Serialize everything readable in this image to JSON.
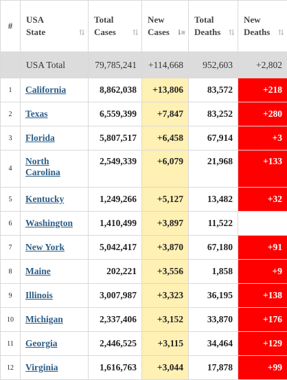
{
  "headers": {
    "index": "#",
    "state_line1": "USA",
    "state_line2": "State",
    "cases_line1": "Total",
    "cases_line2": "Cases",
    "newcases_line1": "New",
    "newcases_line2": "Cases",
    "deaths_line1": "Total",
    "deaths_line2": "Deaths",
    "newdeaths_line1": "New",
    "newdeaths_line2": "Deaths",
    "sort_icon": "⇅",
    "sort_active_icon": "⇂≡"
  },
  "total": {
    "label": "USA Total",
    "total_cases": "79,785,241",
    "new_cases": "+114,668",
    "total_deaths": "952,603",
    "new_deaths": "+2,802"
  },
  "rows": [
    {
      "idx": "1",
      "state_line1": "California",
      "state_line2": "",
      "cases": "8,862,038",
      "new_cases": "+13,806",
      "deaths": "83,572",
      "new_deaths": "+218"
    },
    {
      "idx": "2",
      "state_line1": "Texas",
      "state_line2": "",
      "cases": "6,559,399",
      "new_cases": "+7,847",
      "deaths": "83,252",
      "new_deaths": "+280"
    },
    {
      "idx": "3",
      "state_line1": "Florida",
      "state_line2": "",
      "cases": "5,807,517",
      "new_cases": "+6,458",
      "deaths": "67,914",
      "new_deaths": "+3"
    },
    {
      "idx": "4",
      "state_line1": "North",
      "state_line2": "Carolina",
      "cases": "2,549,339",
      "new_cases": "+6,079",
      "deaths": "21,968",
      "new_deaths": "+133"
    },
    {
      "idx": "5",
      "state_line1": "Kentucky",
      "state_line2": "",
      "cases": "1,249,266",
      "new_cases": "+5,127",
      "deaths": "13,482",
      "new_deaths": "+32"
    },
    {
      "idx": "6",
      "state_line1": "Washington",
      "state_line2": "",
      "cases": "1,410,499",
      "new_cases": "+3,897",
      "deaths": "11,522",
      "new_deaths": ""
    },
    {
      "idx": "7",
      "state_line1": "New York",
      "state_line2": "",
      "cases": "5,042,417",
      "new_cases": "+3,870",
      "deaths": "67,180",
      "new_deaths": "+91"
    },
    {
      "idx": "8",
      "state_line1": "Maine",
      "state_line2": "",
      "cases": "202,221",
      "new_cases": "+3,556",
      "deaths": "1,858",
      "new_deaths": "+9"
    },
    {
      "idx": "9",
      "state_line1": "Illinois",
      "state_line2": "",
      "cases": "3,007,987",
      "new_cases": "+3,323",
      "deaths": "36,195",
      "new_deaths": "+138"
    },
    {
      "idx": "10",
      "state_line1": "Michigan",
      "state_line2": "",
      "cases": "2,337,406",
      "new_cases": "+3,152",
      "deaths": "33,870",
      "new_deaths": "+176"
    },
    {
      "idx": "11",
      "state_line1": "Georgia",
      "state_line2": "",
      "cases": "2,446,525",
      "new_cases": "+3,115",
      "deaths": "34,464",
      "new_deaths": "+129"
    },
    {
      "idx": "12",
      "state_line1": "Virginia",
      "state_line2": "",
      "cases": "1,616,763",
      "new_cases": "+3,044",
      "deaths": "17,878",
      "new_deaths": "+99"
    }
  ],
  "colors": {
    "header_bg": "#ffffff",
    "total_row_bg": "#dcdcdc",
    "new_cases_bg": "#fff0b3",
    "new_deaths_bg": "#ff0000",
    "link": "#2c5d87"
  }
}
